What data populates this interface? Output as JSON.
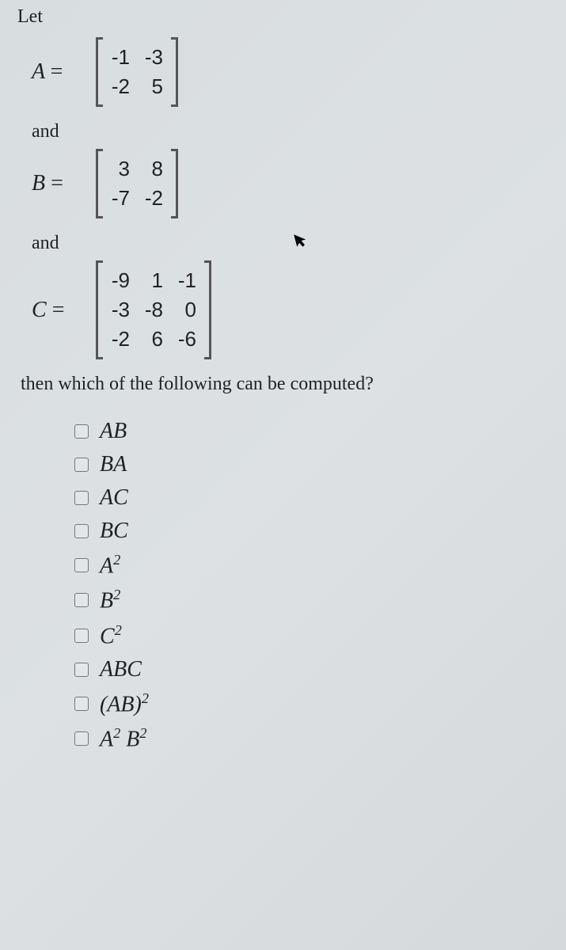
{
  "intro": "Let",
  "matrices": [
    {
      "name": "A",
      "rows": [
        [
          "-1",
          "-3"
        ],
        [
          "-2",
          "5"
        ]
      ],
      "cols": 2
    },
    {
      "name": "B",
      "rows": [
        [
          "3",
          "8"
        ],
        [
          "-7",
          "-2"
        ]
      ],
      "cols": 2
    },
    {
      "name": "C",
      "rows": [
        [
          "-9",
          "1",
          "-1"
        ],
        [
          "-3",
          "-8",
          "0"
        ],
        [
          "-2",
          "6",
          "-6"
        ]
      ],
      "cols": 3
    }
  ],
  "and_label": "and",
  "question": "then which of the following can be computed?",
  "options": [
    {
      "id": "AB",
      "html": "AB"
    },
    {
      "id": "BA",
      "html": "BA"
    },
    {
      "id": "AC",
      "html": "AC"
    },
    {
      "id": "BC",
      "html": "BC"
    },
    {
      "id": "A2",
      "html": "A<sup>2</sup>"
    },
    {
      "id": "B2",
      "html": "B<sup>2</sup>"
    },
    {
      "id": "C2",
      "html": "C<sup>2</sup>"
    },
    {
      "id": "ABC",
      "html": "ABC"
    },
    {
      "id": "(AB)2",
      "html": "(AB)<sup>2</sup>"
    },
    {
      "id": "A2B2",
      "html": "A<sup>2</sup> B<sup>2</sup>"
    }
  ],
  "colors": {
    "text": "#222222",
    "bracket": "#555555",
    "checkbox_border": "#777777",
    "background_start": "#d8dde0",
    "background_end": "#d5d9db"
  },
  "fonts": {
    "body_size_pt": 18,
    "matrix_size_pt": 20,
    "option_size_pt": 21
  }
}
